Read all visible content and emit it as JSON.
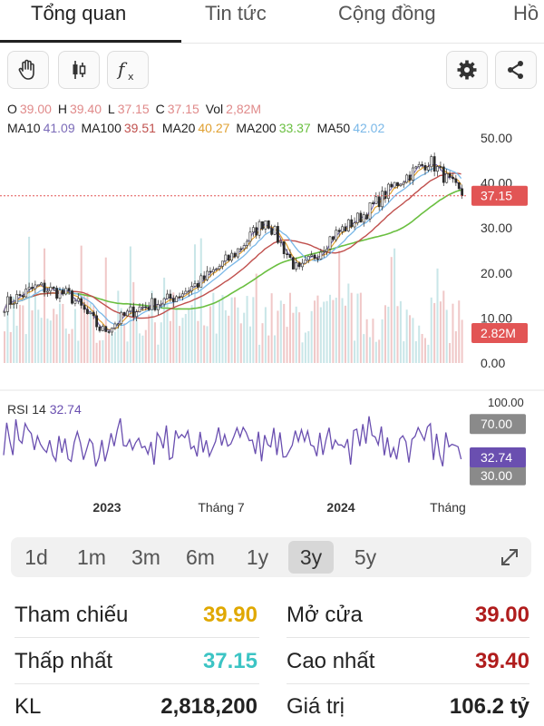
{
  "tabs": [
    {
      "label": "Tổng quan",
      "active": true
    },
    {
      "label": "Tin tức",
      "active": false
    },
    {
      "label": "Cộng đồng",
      "active": false
    },
    {
      "label": "Hồ",
      "active": false
    }
  ],
  "toolbar": {
    "icons": [
      "hand-icon",
      "candlestick-icon",
      "formula-icon",
      "gear-icon",
      "share-icon"
    ],
    "formula_label": "fx"
  },
  "ohlc": {
    "o_label": "O",
    "o_value": "39.00",
    "h_label": "H",
    "h_value": "39.40",
    "l_label": "L",
    "l_value": "37.15",
    "c_label": "C",
    "c_value": "37.15",
    "vol_label": "Vol",
    "vol_value": "2,82M"
  },
  "ma": {
    "ma10_label": "MA10",
    "ma10_value": "41.09",
    "ma100_label": "MA100",
    "ma100_value": "39.51",
    "ma20_label": "MA20",
    "ma20_value": "40.27",
    "ma200_label": "MA200",
    "ma200_value": "33.37",
    "ma50_label": "MA50",
    "ma50_value": "42.02"
  },
  "colors": {
    "down": "#e08a8a",
    "up": "#8ccbd0",
    "ma10": "#7b6bb8",
    "ma100": "#c0504d",
    "ma20": "#e0a030",
    "ma200": "#6abf40",
    "ma50": "#7ab8e8",
    "rsi": "#6a4fb0",
    "price_tag": "#e25555",
    "grey_tag": "#8a8a8a"
  },
  "chart_data": {
    "type": "candlestick",
    "price_axis_ticks": [
      "50.00",
      "40.00",
      "30.00",
      "20.00",
      "10.00",
      "0.00"
    ],
    "price_range": [
      0,
      50
    ],
    "last_price_tag": "37.15",
    "volume_tag": "2.82M",
    "x_labels": [
      "2023",
      "Tháng 7",
      "2024",
      "Tháng"
    ],
    "close_approx": [
      {
        "t": "2022-05",
        "v": 13
      },
      {
        "t": "2022-07",
        "v": 17
      },
      {
        "t": "2022-09",
        "v": 15
      },
      {
        "t": "2022-11",
        "v": 7
      },
      {
        "t": "2023-01",
        "v": 12
      },
      {
        "t": "2023-03",
        "v": 14
      },
      {
        "t": "2023-05",
        "v": 18
      },
      {
        "t": "2023-07",
        "v": 24
      },
      {
        "t": "2023-09",
        "v": 32
      },
      {
        "t": "2023-11",
        "v": 20
      },
      {
        "t": "2024-01",
        "v": 28
      },
      {
        "t": "2024-03",
        "v": 33
      },
      {
        "t": "2024-05",
        "v": 40
      },
      {
        "t": "2024-07",
        "v": 45
      },
      {
        "t": "2024-08",
        "v": 37.15
      }
    ],
    "rsi": {
      "label": "RSI 14",
      "value": "32.74",
      "levels": [
        "70.00",
        "30.00"
      ],
      "top_tick": "100.00"
    }
  },
  "timeframes": [
    {
      "label": "1d",
      "active": false
    },
    {
      "label": "1m",
      "active": false
    },
    {
      "label": "3m",
      "active": false
    },
    {
      "label": "6m",
      "active": false
    },
    {
      "label": "1y",
      "active": false
    },
    {
      "label": "3y",
      "active": true
    },
    {
      "label": "5y",
      "active": false
    }
  ],
  "stats": {
    "tham_chieu_label": "Tham chiếu",
    "tham_chieu_value": "39.90",
    "tham_chieu_color": "#e0a800",
    "mo_cua_label": "Mở cửa",
    "mo_cua_value": "39.00",
    "mo_cua_color": "#b01c1c",
    "thap_nhat_label": "Thấp nhất",
    "thap_nhat_value": "37.15",
    "thap_nhat_color": "#3cc4c4",
    "cao_nhat_label": "Cao nhất",
    "cao_nhat_value": "39.40",
    "cao_nhat_color": "#b01c1c",
    "kl_label": "KL",
    "kl_value": "2,818,200",
    "kl_color": "#222222",
    "gia_tri_label": "Giá trị",
    "gia_tri_value": "106.2 tỷ",
    "gia_tri_color": "#222222"
  }
}
